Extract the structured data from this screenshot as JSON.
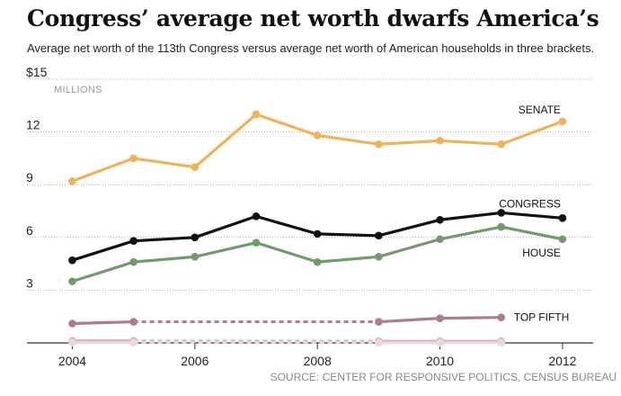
{
  "title": "Congress’ average net worth dwarfs America’s",
  "subtitle": "Average net worth of the 113th Congress versus average net worth of American households in three brackets.",
  "source": "SOURCE: CENTER FOR RESPONSIVE POLITICS, CENSUS BUREAU",
  "chart_data": {
    "type": "line",
    "xlabel": "",
    "ylabel": "",
    "ylim": [
      0,
      15
    ],
    "xlim": [
      2003.7,
      2012.5
    ],
    "y_ticks": [
      {
        "value": 15,
        "label": "$15"
      },
      {
        "value": 12,
        "label": "12"
      },
      {
        "value": 9,
        "label": "9"
      },
      {
        "value": 6,
        "label": "6"
      },
      {
        "value": 3,
        "label": "3"
      }
    ],
    "y_unit": "MILLIONS",
    "x_ticks": [
      {
        "value": 2004,
        "label": "2004"
      },
      {
        "value": 2006,
        "label": "2006"
      },
      {
        "value": 2008,
        "label": "2008"
      },
      {
        "value": 2010,
        "label": "2010"
      },
      {
        "value": 2012,
        "label": "2012"
      }
    ],
    "grid": true,
    "series": [
      {
        "name": "SENATE",
        "color": "#f0b35a",
        "labeled": true,
        "points": [
          [
            2004,
            9.2
          ],
          [
            2005,
            10.5
          ],
          [
            2006,
            10.0
          ],
          [
            2007,
            13.0
          ],
          [
            2008,
            11.8
          ],
          [
            2009,
            11.3
          ],
          [
            2010,
            11.5
          ],
          [
            2011,
            11.3
          ],
          [
            2012,
            12.6
          ]
        ]
      },
      {
        "name": "CONGRESS",
        "color": "#111111",
        "labeled": true,
        "points": [
          [
            2004,
            4.7
          ],
          [
            2005,
            5.8
          ],
          [
            2006,
            6.0
          ],
          [
            2007,
            7.2
          ],
          [
            2008,
            6.2
          ],
          [
            2009,
            6.1
          ],
          [
            2010,
            7.0
          ],
          [
            2011,
            7.4
          ],
          [
            2012,
            7.1
          ]
        ]
      },
      {
        "name": "HOUSE",
        "color": "#739a6e",
        "labeled": true,
        "points": [
          [
            2004,
            3.5
          ],
          [
            2005,
            4.6
          ],
          [
            2006,
            4.9
          ],
          [
            2007,
            5.7
          ],
          [
            2008,
            4.6
          ],
          [
            2009,
            4.9
          ],
          [
            2010,
            5.9
          ],
          [
            2011,
            6.6
          ],
          [
            2012,
            5.9
          ]
        ]
      },
      {
        "name": "TOP FIFTH",
        "color": "#b07a92",
        "labeled": true,
        "points": [
          [
            2004,
            1.1
          ],
          [
            2005,
            1.2
          ],
          [
            2009,
            1.2
          ],
          [
            2010,
            1.4
          ],
          [
            2011,
            1.45
          ]
        ],
        "dashed_between": [
          [
            2005,
            2009
          ]
        ]
      },
      {
        "name": "",
        "color": "#d9b2c3",
        "labeled": false,
        "points": [
          [
            2004,
            0.12
          ],
          [
            2005,
            0.12
          ],
          [
            2009,
            0.1
          ],
          [
            2010,
            0.1
          ],
          [
            2011,
            0.1
          ]
        ],
        "dashed_between": [
          [
            2005,
            2009
          ]
        ]
      },
      {
        "name": "",
        "color": "#ecd6df",
        "labeled": false,
        "points": [
          [
            2004,
            0.02
          ],
          [
            2005,
            0.02
          ],
          [
            2009,
            0.01
          ],
          [
            2010,
            0.01
          ],
          [
            2011,
            0.01
          ]
        ],
        "dashed_between": [
          [
            2005,
            2009
          ]
        ]
      }
    ]
  }
}
